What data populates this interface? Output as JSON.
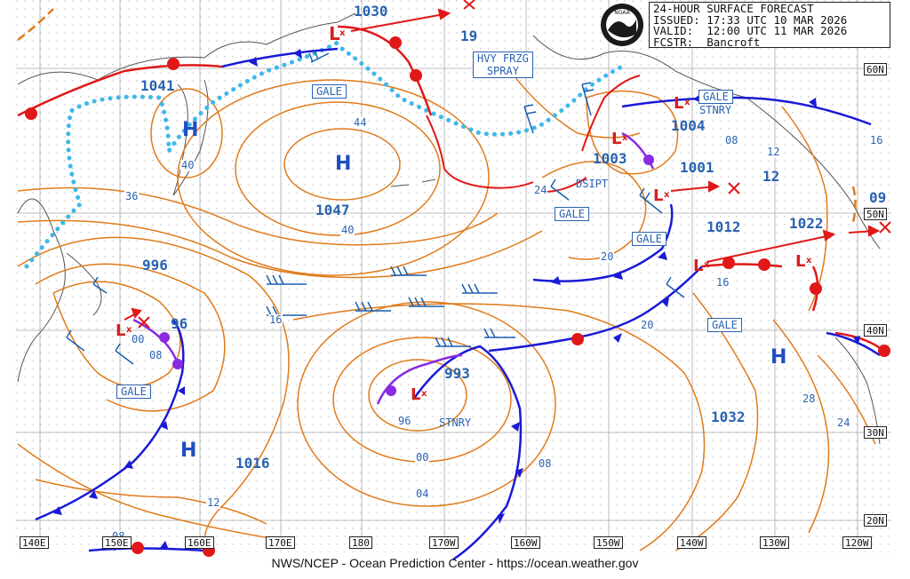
{
  "header": {
    "line1": "24-HOUR SURFACE FORECAST",
    "line2": "ISSUED: 17:33 UTC 10 MAR 2026",
    "line3": "VALID:  12:00 UTC 11 MAR 2026",
    "line4": "FCSTR:  Bancroft"
  },
  "logo_icon": "noaa-logo-icon",
  "footer": "NWS/NCEP - Ocean Prediction Center - https://ocean.weather.gov",
  "longitudes": [
    "140E",
    "150E",
    "160E",
    "170E",
    "180",
    "170W",
    "160W",
    "150W",
    "140W",
    "130W",
    "120W"
  ],
  "latitudes": [
    "60N",
    "50N",
    "40N",
    "30N",
    "20N"
  ],
  "pressure_centers": {
    "p1030": "1030",
    "p1041": "1041",
    "p1047": "1047",
    "p1004": "1004",
    "p1003": "1003",
    "p1001": "1001",
    "p1012": "1012",
    "p1022": "1022",
    "p996": "996",
    "p993": "993",
    "p1016": "1016",
    "p1032": "1032"
  },
  "isobar_labels": {
    "l19": "19",
    "l44": "44",
    "l40a": "40",
    "l40b": "40",
    "l36": "36",
    "l16a": "16",
    "l16b": "16",
    "l16c": "16",
    "l08a": "08",
    "l08b": "08",
    "l08c": "08",
    "l08d": "08",
    "l12a": "12",
    "l12b": "12",
    "l12c": "12",
    "l24a": "24",
    "l24b": "24",
    "l20a": "20",
    "l20b": "20",
    "l09": "09",
    "l96a": "96",
    "l96b": "96",
    "l00a": "00",
    "l00b": "00",
    "l04": "04",
    "l28": "28"
  },
  "boxes": {
    "gale1": "GALE",
    "gale2": "GALE",
    "gale3": "GALE",
    "gale4": "GALE",
    "gale5": "GALE",
    "gale6": "GALE",
    "hvy_line1": "HVY FRZG",
    "hvy_line2": "SPRAY"
  },
  "annotations": {
    "stnry1": "STNRY",
    "stnry2": "STNRY",
    "dsipt": "DSIPT"
  },
  "highs": {
    "h1": "H",
    "h2": "H",
    "h3": "H",
    "h4": "H"
  },
  "colors": {
    "isobar": "#e07b1a",
    "front_cold": "#1a1ad6",
    "front_warm": "#e01818",
    "ice": "#3fb8e8",
    "label": "#2a63b0",
    "trough": "#8a2be2"
  }
}
